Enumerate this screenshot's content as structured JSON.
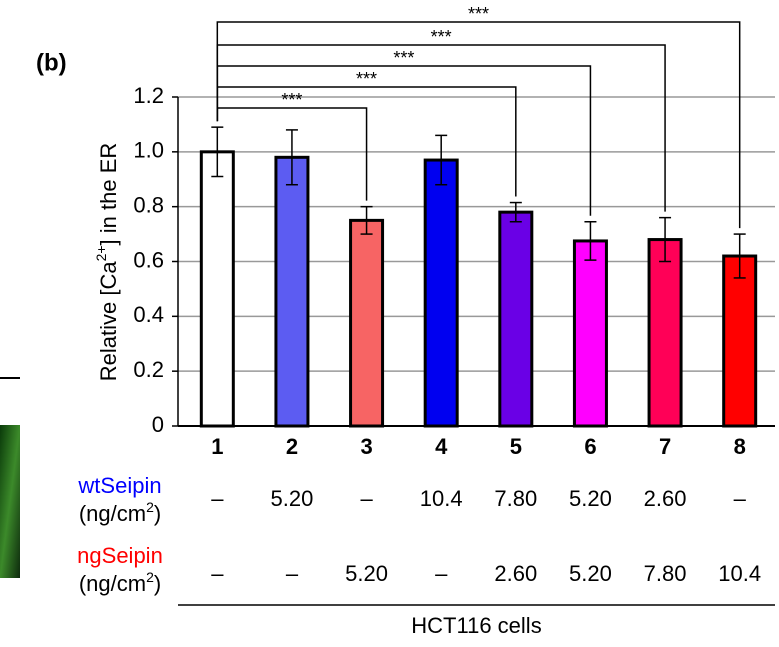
{
  "chart_data": {
    "type": "bar",
    "panel_label": "(b)",
    "y_label": {
      "before": "Relative [Ca",
      "sup": "2+",
      "after": "] in the ER"
    },
    "categories": [
      "1",
      "2",
      "3",
      "4",
      "5",
      "6",
      "7",
      "8"
    ],
    "values": [
      1.0,
      0.98,
      0.75,
      0.97,
      0.78,
      0.675,
      0.68,
      0.62
    ],
    "errors": [
      0.09,
      0.1,
      0.05,
      0.09,
      0.035,
      0.07,
      0.08,
      0.08
    ],
    "colors": [
      "#ffffff",
      "#5c5cf2",
      "#f76464",
      "#0000f0",
      "#6a00e6",
      "#ff00ff",
      "#ff0057",
      "#ff0000"
    ],
    "ylim": [
      0,
      1.2
    ],
    "yticks": [
      0,
      0.2,
      0.4,
      0.6,
      0.8,
      {
        "value": 1,
        "label": "1.0"
      },
      1.2
    ],
    "grid": true,
    "significance": [
      {
        "from": 0,
        "to": 2,
        "label": "***"
      },
      {
        "from": 0,
        "to": 4,
        "label": "***"
      },
      {
        "from": 0,
        "to": 5,
        "label": "***"
      },
      {
        "from": 0,
        "to": 6,
        "label": "***"
      },
      {
        "from": 0,
        "to": 7,
        "label": "***"
      }
    ],
    "table": [
      {
        "name": "wtSeipin",
        "color": "#0000ff",
        "unit": {
          "before": "(ng/cm",
          "sup": "2",
          "after": ")"
        },
        "cells": [
          "–",
          "5.20",
          "–",
          "10.4",
          "7.80",
          "5.20",
          "2.60",
          "–"
        ]
      },
      {
        "name": "ngSeipin",
        "color": "#ff0000",
        "unit": {
          "before": "(ng/cm",
          "sup": "2",
          "after": ")"
        },
        "cells": [
          "–",
          "–",
          "5.20",
          "–",
          "2.60",
          "5.20",
          "7.80",
          "10.4"
        ]
      }
    ],
    "footer": "HCT116 cells"
  }
}
